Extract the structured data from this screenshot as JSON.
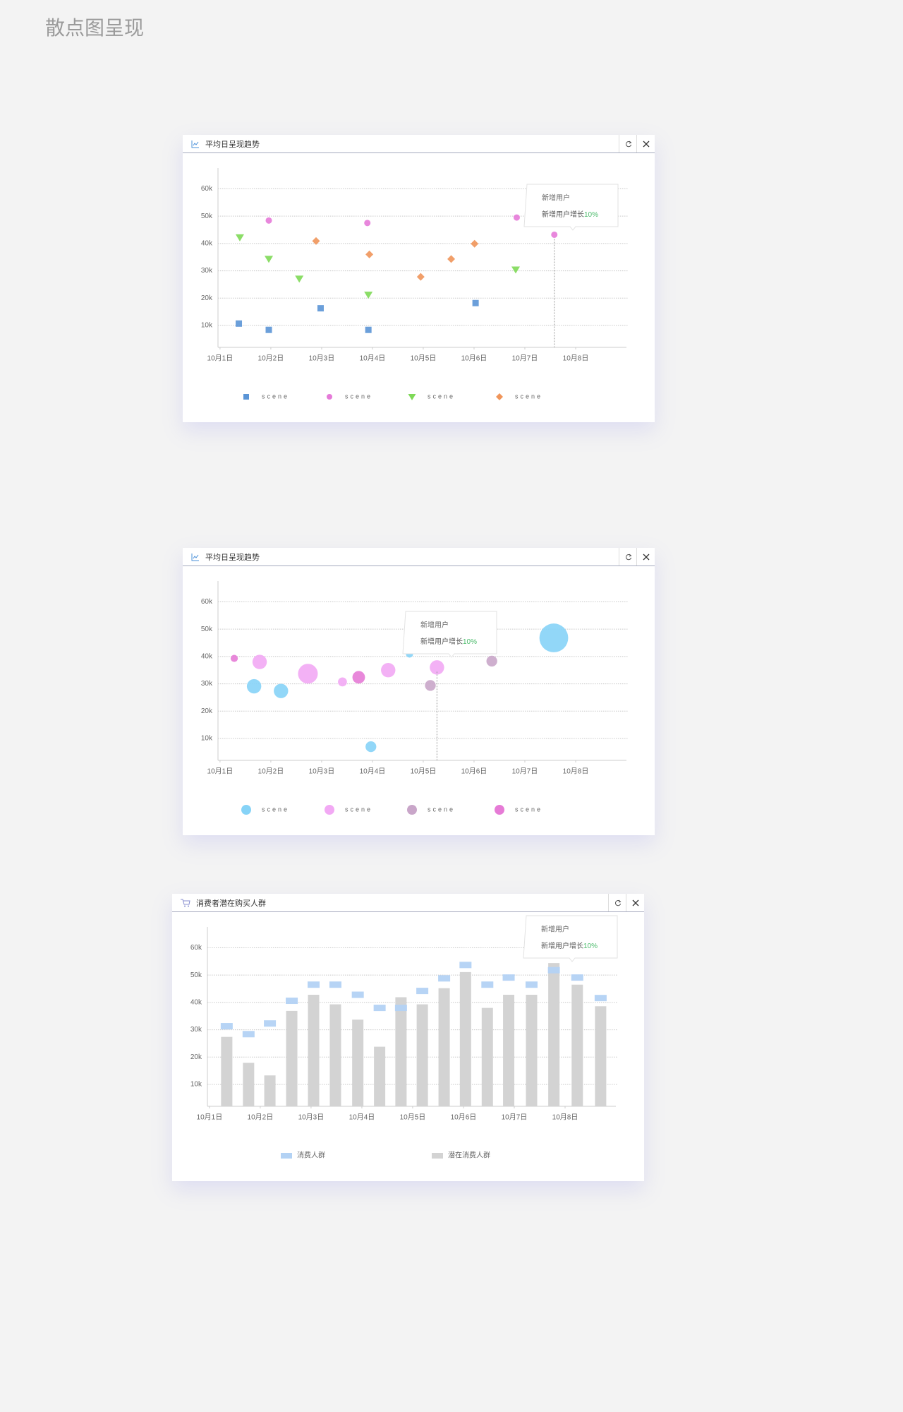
{
  "page_title": "散点图呈现",
  "chart_data": [
    {
      "type": "scatter",
      "title": "平均日呈现趋势",
      "xlim": [
        0.96,
        9.0
      ],
      "xticks": [
        {
          "value": 1,
          "label": "10月1日"
        },
        {
          "value": 2,
          "label": "10月2日"
        },
        {
          "value": 3,
          "label": "10月3日"
        },
        {
          "value": 4,
          "label": "10月4日"
        },
        {
          "value": 5,
          "label": "10月5日"
        },
        {
          "value": 6,
          "label": "10月6日"
        },
        {
          "value": 7,
          "label": "10月7日"
        },
        {
          "value": 8,
          "label": "10月8日"
        }
      ],
      "ylim": [
        2000,
        67600
      ],
      "yticks": [
        {
          "value": 10000,
          "label": "10k"
        },
        {
          "value": 20000,
          "label": "20k"
        },
        {
          "value": 30000,
          "label": "30k"
        },
        {
          "value": 40000,
          "label": "40k"
        },
        {
          "value": 50000,
          "label": "50k"
        },
        {
          "value": 60000,
          "label": "60k"
        }
      ],
      "grid": true,
      "series": [
        {
          "name": "scene",
          "color": "#5b95d6",
          "marker": "square",
          "x": [
            1.37,
            1.96,
            2.98,
            3.92,
            6.03
          ],
          "values": [
            10700,
            8400,
            16300,
            8400,
            18200
          ]
        },
        {
          "name": "scene",
          "color": "#e57ad8",
          "marker": "circle",
          "x": [
            1.96,
            3.9,
            6.84,
            7.58
          ],
          "values": [
            48400,
            47500,
            49500,
            43200
          ]
        },
        {
          "name": "scene",
          "color": "#7ed957",
          "marker": "triangle",
          "x": [
            1.39,
            1.96,
            2.56,
            3.92,
            6.82
          ],
          "values": [
            42200,
            34300,
            27100,
            21200,
            30400
          ]
        },
        {
          "name": "scene",
          "color": "#f0955a",
          "marker": "diamond",
          "x": [
            2.89,
            3.94,
            4.95,
            5.55,
            6.01
          ],
          "values": [
            40900,
            36000,
            27800,
            34300,
            39900
          ]
        }
      ],
      "tooltip": {
        "line1": "新增用户",
        "line2": "新增用户增长",
        "highlight": "10%"
      }
    },
    {
      "type": "bubble",
      "title": "平均日呈现趋势",
      "xlim": [
        0.96,
        9.0
      ],
      "xticks": [
        {
          "value": 1,
          "label": "10月1日"
        },
        {
          "value": 2,
          "label": "10月2日"
        },
        {
          "value": 3,
          "label": "10月3日"
        },
        {
          "value": 4,
          "label": "10月4日"
        },
        {
          "value": 5,
          "label": "10月5日"
        },
        {
          "value": 6,
          "label": "10月6日"
        },
        {
          "value": 7,
          "label": "10月7日"
        },
        {
          "value": 8,
          "label": "10月8日"
        }
      ],
      "ylim": [
        2000,
        67600
      ],
      "yticks": [
        {
          "value": 10000,
          "label": "10k"
        },
        {
          "value": 20000,
          "label": "20k"
        },
        {
          "value": 30000,
          "label": "30k"
        },
        {
          "value": 40000,
          "label": "40k"
        },
        {
          "value": 50000,
          "label": "50k"
        },
        {
          "value": 60000,
          "label": "60k"
        }
      ],
      "grid": true,
      "series": [
        {
          "name": "scene",
          "color": "#86d3f7",
          "x": [
            1.67,
            2.2,
            3.97,
            4.73,
            7.57
          ],
          "values": [
            29100,
            27400,
            7000,
            40900,
            46800
          ],
          "sizes": [
            8,
            8,
            6,
            4,
            16
          ]
        },
        {
          "name": "scene",
          "color": "#f2a9f4",
          "x": [
            1.78,
            2.73,
            3.41,
            4.31,
            5.27
          ],
          "values": [
            38000,
            33700,
            30700,
            35000,
            36000
          ],
          "sizes": [
            8,
            11,
            5,
            8,
            8
          ]
        },
        {
          "name": "scene",
          "color": "#c9a6c9",
          "x": [
            5.14,
            6.35
          ],
          "values": [
            29400,
            38300
          ],
          "sizes": [
            6,
            6
          ]
        },
        {
          "name": "scene",
          "color": "#e67bd6",
          "x": [
            1.28,
            3.73
          ],
          "values": [
            39300,
            32400
          ],
          "sizes": [
            4,
            7
          ]
        }
      ],
      "tooltip": {
        "line1": "新增用户",
        "line2": "新增用户增长",
        "highlight": "10%"
      }
    },
    {
      "type": "bar",
      "title": "消费者潜在购买人群",
      "xlim": [
        0.96,
        9.0
      ],
      "xticks": [
        {
          "value": 1,
          "label": "10月1日"
        },
        {
          "value": 2,
          "label": "10月2日"
        },
        {
          "value": 3,
          "label": "10月3日"
        },
        {
          "value": 4,
          "label": "10月4日"
        },
        {
          "value": 5,
          "label": "10月5日"
        },
        {
          "value": 6,
          "label": "10月6日"
        },
        {
          "value": 7,
          "label": "10月7日"
        },
        {
          "value": 8,
          "label": "10月8日"
        }
      ],
      "ylim": [
        2000,
        67600
      ],
      "yticks": [
        {
          "value": 10000,
          "label": "10k"
        },
        {
          "value": 20000,
          "label": "20k"
        },
        {
          "value": 30000,
          "label": "30k"
        },
        {
          "value": 40000,
          "label": "40k"
        },
        {
          "value": 50000,
          "label": "50k"
        },
        {
          "value": 60000,
          "label": "60k"
        }
      ],
      "grid": true,
      "x": [
        1.34,
        1.77,
        2.19,
        2.62,
        3.05,
        3.48,
        3.92,
        4.35,
        4.77,
        5.19,
        5.62,
        6.04,
        6.47,
        6.89,
        7.34,
        7.78,
        8.24,
        8.7
      ],
      "series": [
        {
          "name": "消费人群",
          "color": "#b3d2f4",
          "mark": "dash",
          "values": [
            31300,
            28400,
            32300,
            40600,
            46500,
            46500,
            42800,
            38000,
            38000,
            44200,
            48800,
            53700,
            46500,
            49100,
            46500,
            51800,
            49100,
            41600
          ]
        },
        {
          "name": "潜在消费人群",
          "color": "#d3d3d3",
          "mark": "bar",
          "values": [
            27400,
            17900,
            13300,
            36900,
            42800,
            39300,
            33700,
            23800,
            41900,
            39300,
            45200,
            51100,
            38000,
            42800,
            42800,
            54400,
            46500,
            38600
          ]
        }
      ],
      "tooltip": {
        "line1": "新增用户",
        "line2": "新增用户增长",
        "highlight": "10%"
      }
    }
  ]
}
